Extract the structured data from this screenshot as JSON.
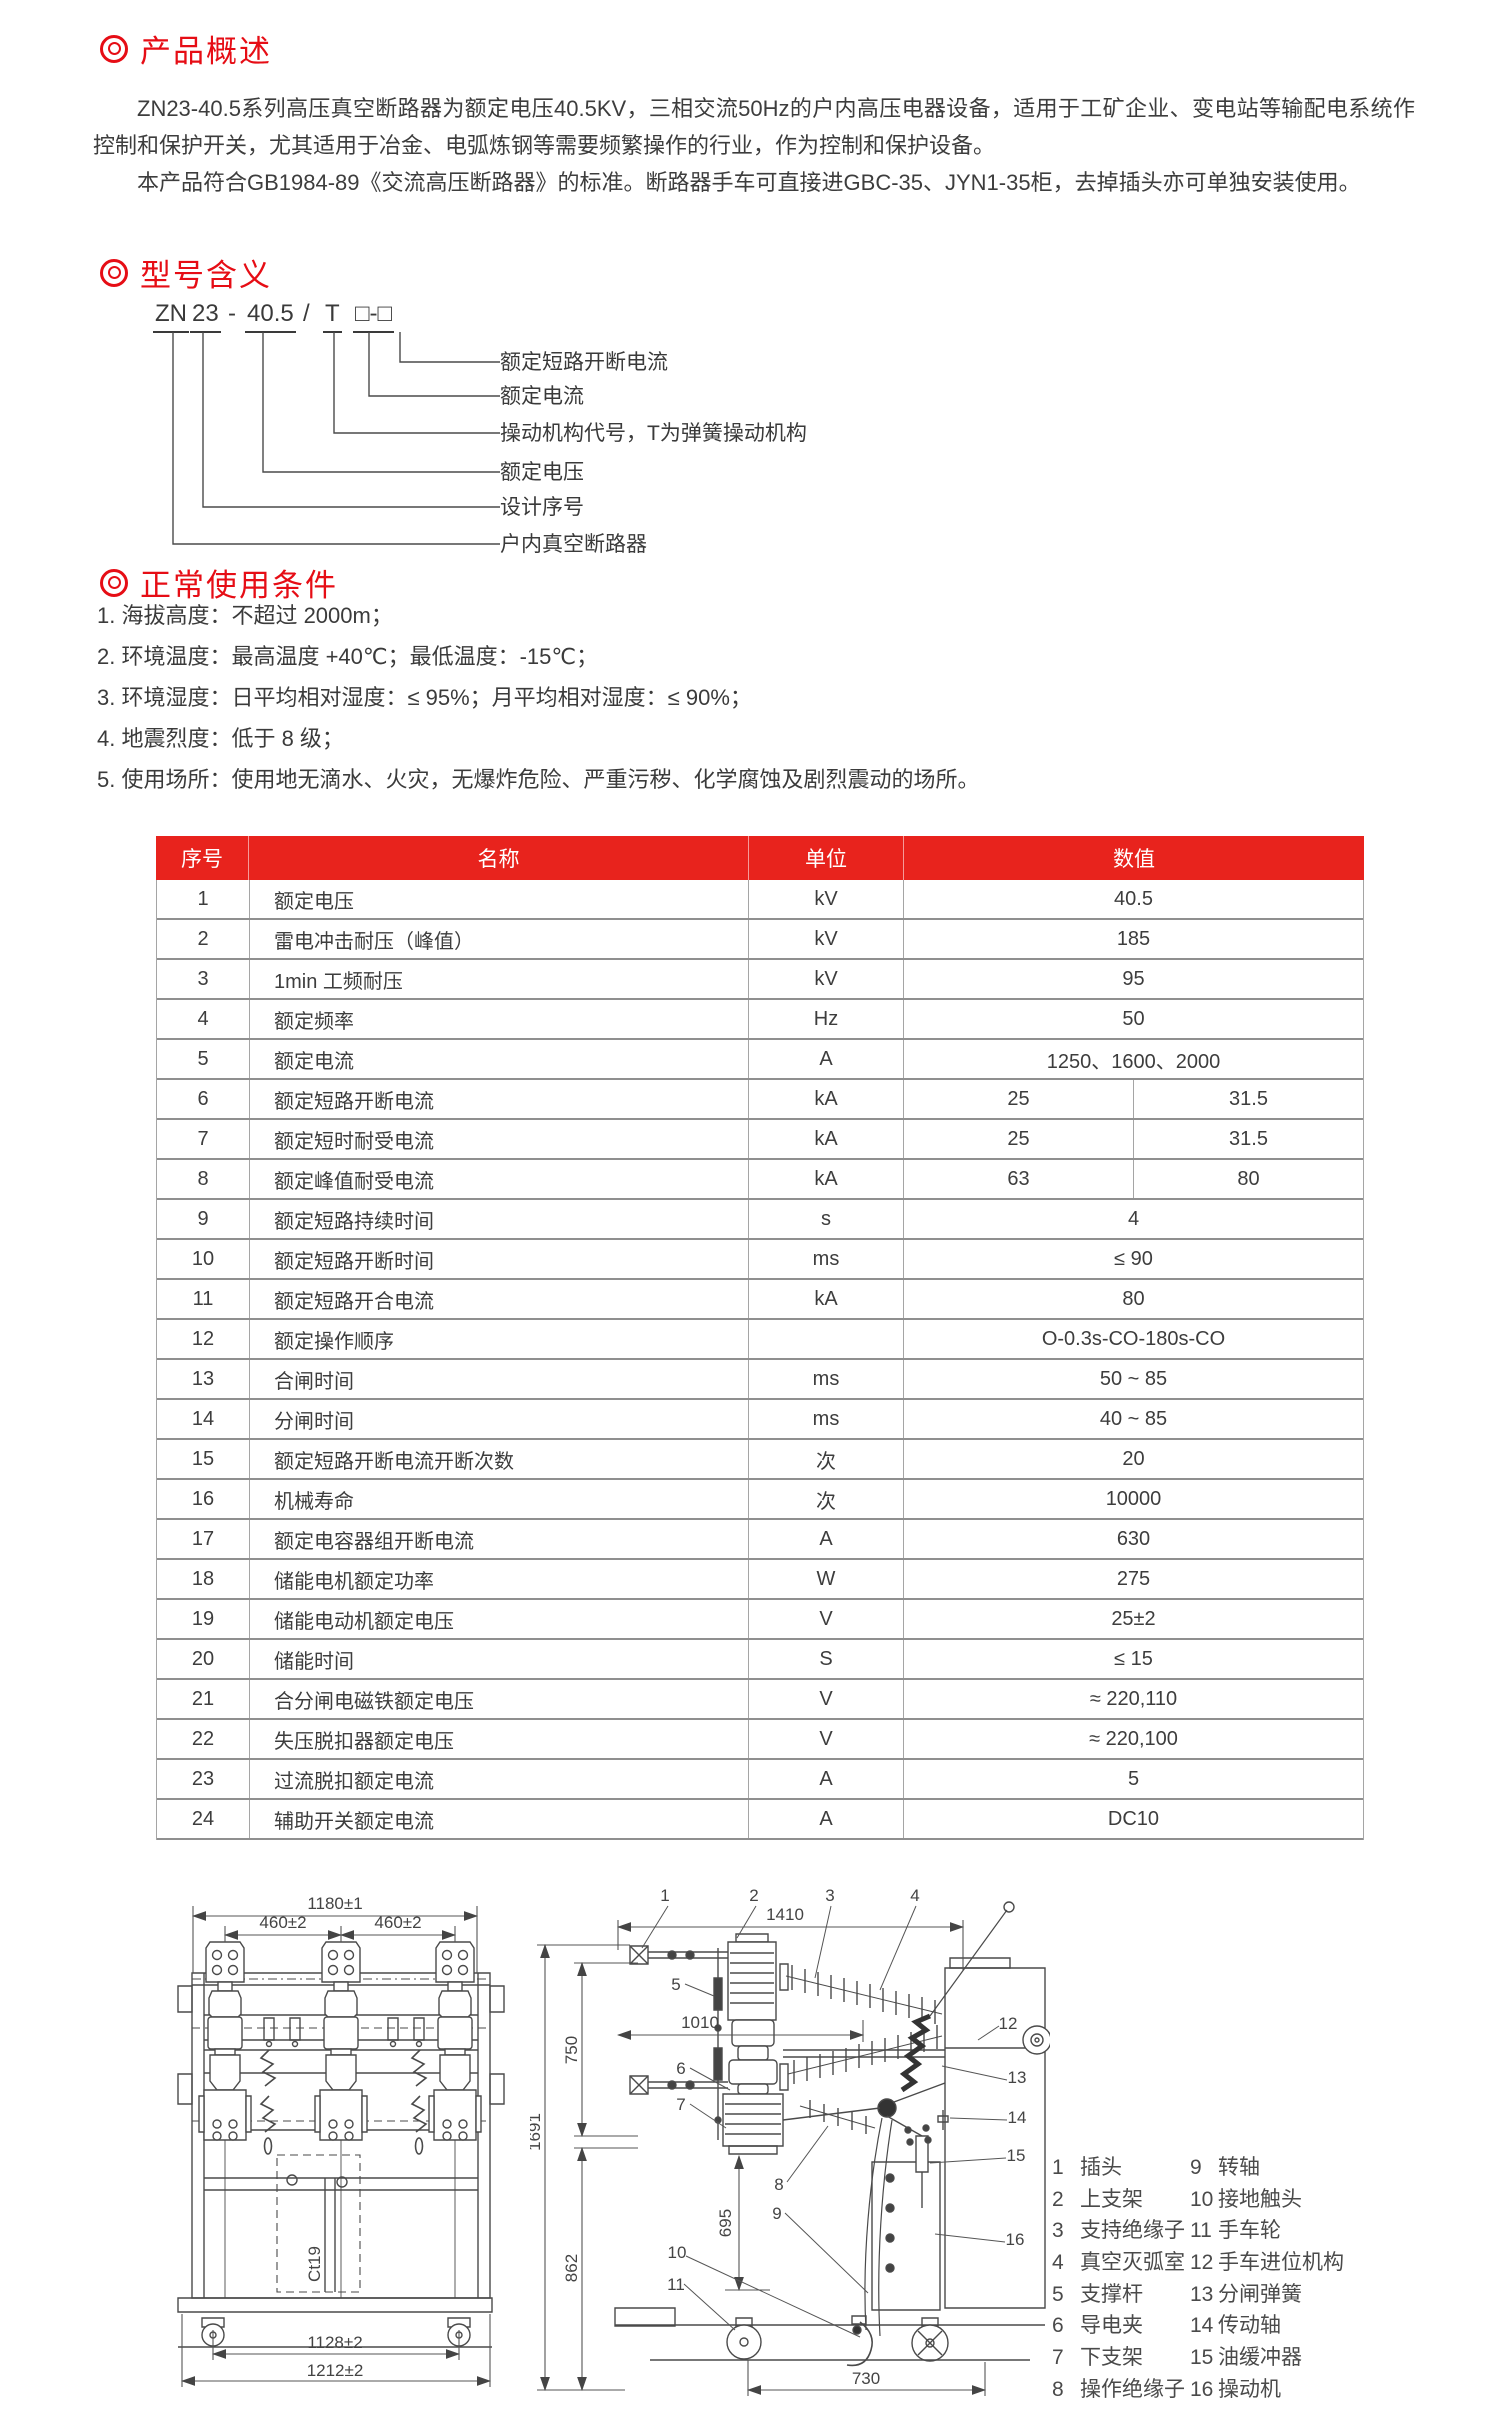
{
  "page": {
    "background": "#ffffff",
    "heading_red": "#e60d15",
    "table_header_red": "#e8231d",
    "text_color": "#3d3d3d"
  },
  "sections": {
    "overview": {
      "marker_icon": "double-circle",
      "title": "产品概述",
      "paragraphs": [
        "ZN23-40.5系列高压真空断路器为额定电压40.5KV，三相交流50Hz的户内高压电器设备，适用于工矿企业、变电站等输配电系统作控制和保护开关，尤其适用于冶金、电弧炼钢等需要频繁操作的行业，作为控制和保护设备。",
        "本产品符合GB1984-89《交流高压断路器》的标准。断路器手车可直接进GBC-35、JYN1-35柜，去掉插头亦可单独安装使用。"
      ]
    },
    "model": {
      "marker_icon": "double-circle",
      "title": "型号含义",
      "code_parts": [
        "ZN",
        "23",
        "-",
        "40.5",
        "/",
        "T",
        "□-□"
      ],
      "labels": [
        "额定短路开断电流",
        "额定电流",
        "操动机构代号，T为弹簧操动机构",
        "额定电压",
        "设计序号",
        "户内真空断路器"
      ]
    },
    "conditions": {
      "marker_icon": "double-circle",
      "title": "正常使用条件",
      "items": [
        "1. 海拔高度：不超过 2000m；",
        "2. 环境温度：最高温度 +40℃；最低温度：-15℃；",
        "3. 环境湿度：日平均相对湿度：≤ 95%；月平均相对湿度：≤ 90%；",
        "4. 地震烈度：低于 8 级；",
        "5. 使用场所：使用地无滴水、火灾，无爆炸危险、严重污秽、化学腐蚀及剧烈震动的场所。"
      ]
    }
  },
  "table": {
    "headers": [
      "序号",
      "名称",
      "单位",
      "数值"
    ],
    "rows": [
      {
        "no": "1",
        "name": "额定电压",
        "unit": "kV",
        "value": "40.5"
      },
      {
        "no": "2",
        "name": "雷电冲击耐压（峰值）",
        "unit": "kV",
        "value": "185"
      },
      {
        "no": "3",
        "name": "1min 工频耐压",
        "unit": "kV",
        "value": "95"
      },
      {
        "no": "4",
        "name": "额定频率",
        "unit": "Hz",
        "value": "50"
      },
      {
        "no": "5",
        "name": "额定电流",
        "unit": "A",
        "value": "1250、1600、2000"
      },
      {
        "no": "6",
        "name": "额定短路开断电流",
        "unit": "kA",
        "value": [
          "25",
          "31.5"
        ]
      },
      {
        "no": "7",
        "name": "额定短时耐受电流",
        "unit": "kA",
        "value": [
          "25",
          "31.5"
        ]
      },
      {
        "no": "8",
        "name": "额定峰值耐受电流",
        "unit": "kA",
        "value": [
          "63",
          "80"
        ]
      },
      {
        "no": "9",
        "name": "额定短路持续时间",
        "unit": "s",
        "value": "4"
      },
      {
        "no": "10",
        "name": "额定短路开断时间",
        "unit": "ms",
        "value": "≤ 90"
      },
      {
        "no": "11",
        "name": "额定短路开合电流",
        "unit": "kA",
        "value": "80"
      },
      {
        "no": "12",
        "name": "额定操作顺序",
        "unit": "",
        "value": "O-0.3s-CO-180s-CO"
      },
      {
        "no": "13",
        "name": "合闸时间",
        "unit": "ms",
        "value": "50 ~ 85"
      },
      {
        "no": "14",
        "name": "分闸时间",
        "unit": "ms",
        "value": "40 ~ 85"
      },
      {
        "no": "15",
        "name": "额定短路开断电流开断次数",
        "unit": "次",
        "value": "20"
      },
      {
        "no": "16",
        "name": "机械寿命",
        "unit": "次",
        "value": "10000"
      },
      {
        "no": "17",
        "name": "额定电容器组开断电流",
        "unit": "A",
        "value": "630"
      },
      {
        "no": "18",
        "name": "储能电机额定功率",
        "unit": "W",
        "value": "275"
      },
      {
        "no": "19",
        "name": "储能电动机额定电压",
        "unit": "V",
        "value": "25±2"
      },
      {
        "no": "20",
        "name": "储能时间",
        "unit": "S",
        "value": "≤ 15"
      },
      {
        "no": "21",
        "name": "合分闸电磁铁额定电压",
        "unit": "V",
        "value": "≈ 220,110"
      },
      {
        "no": "22",
        "name": "失压脱扣器额定电压",
        "unit": "V",
        "value": "≈ 220,100"
      },
      {
        "no": "23",
        "name": "过流脱扣额定电流",
        "unit": "A",
        "value": "5"
      },
      {
        "no": "24",
        "name": "辅助开关额定电流",
        "unit": "A",
        "value": "DC10"
      }
    ]
  },
  "drawings": {
    "heights": {
      "total": "1691",
      "upper": "750",
      "lower": "862"
    },
    "front_view": {
      "width_top": "1180±1",
      "phase_spacing_left": "460±2",
      "phase_spacing_right": "460±2",
      "wheelbase": "1128±2",
      "base_width": "1212±2",
      "channel_label": "Ct19"
    },
    "side_view": {
      "width_top": "1410",
      "width_mid": "1010",
      "pole_height": "695",
      "wheelbase": "730",
      "callouts": [
        "1",
        "2",
        "3",
        "4",
        "5",
        "6",
        "7",
        "8",
        "9",
        "10",
        "11",
        "12",
        "13",
        "14",
        "15",
        "16"
      ]
    }
  },
  "legend": {
    "left": [
      {
        "num": "1",
        "label": "插头"
      },
      {
        "num": "2",
        "label": "上支架"
      },
      {
        "num": "3",
        "label": "支持绝缘子"
      },
      {
        "num": "4",
        "label": "真空灭弧室"
      },
      {
        "num": "5",
        "label": "支撑杆"
      },
      {
        "num": "6",
        "label": "导电夹"
      },
      {
        "num": "7",
        "label": "下支架"
      },
      {
        "num": "8",
        "label": "操作绝缘子"
      }
    ],
    "right": [
      {
        "num": "9",
        "label": "转轴"
      },
      {
        "num": "10",
        "label": "接地触头"
      },
      {
        "num": "11",
        "label": "手车轮"
      },
      {
        "num": "12",
        "label": "手车进位机构"
      },
      {
        "num": "13",
        "label": "分闸弹簧"
      },
      {
        "num": "14",
        "label": "传动轴"
      },
      {
        "num": "15",
        "label": "油缓冲器"
      },
      {
        "num": "16",
        "label": "操动机"
      }
    ]
  }
}
